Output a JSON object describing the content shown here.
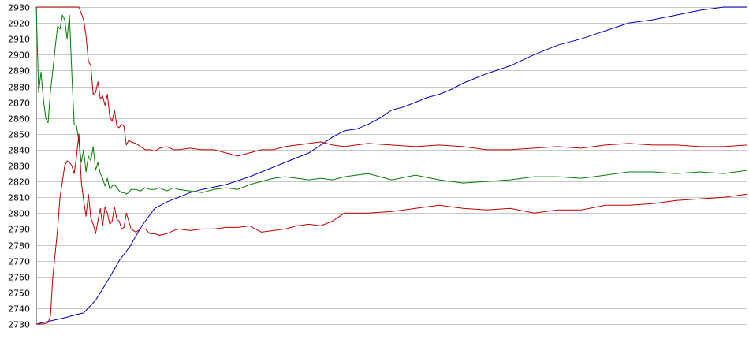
{
  "chart_data": {
    "type": "line",
    "title": "",
    "xlabel": "",
    "ylabel": "",
    "grid": true,
    "ylim": [
      2730,
      2930
    ],
    "xlim": [
      0,
      300
    ],
    "y_ticks": [
      2730,
      2740,
      2750,
      2760,
      2770,
      2780,
      2790,
      2800,
      2810,
      2820,
      2830,
      2840,
      2850,
      2860,
      2870,
      2880,
      2890,
      2900,
      2910,
      2920,
      2930
    ],
    "colors": {
      "blue": "#0000c0",
      "green": "#008000",
      "red": "#c00000",
      "grid": "#c8c8c8"
    },
    "series": [
      {
        "color": "#0000c0",
        "x": [
          0,
          6,
          12,
          17,
          20,
          25,
          30,
          35,
          40,
          41,
          45,
          50,
          55,
          60,
          65,
          70,
          80,
          90,
          100,
          110,
          115,
          120,
          125,
          130,
          135,
          140,
          145,
          150,
          155,
          160,
          165,
          170,
          175,
          180,
          190,
          200,
          210,
          220,
          230,
          240,
          250,
          260,
          270,
          280,
          290,
          300
        ],
        "y": [
          2730,
          2732,
          2734,
          2736,
          2737,
          2745,
          2757,
          2770,
          2780,
          2783,
          2793,
          2803,
          2807,
          2810,
          2813,
          2815,
          2818,
          2823,
          2829,
          2835,
          2838,
          2843,
          2848,
          2852,
          2853,
          2856,
          2860,
          2865,
          2867,
          2870,
          2873,
          2875,
          2878,
          2882,
          2888,
          2893,
          2900,
          2906,
          2910,
          2915,
          2920,
          2922,
          2925,
          2928,
          2932,
          2935
        ]
      },
      {
        "color": "#008000",
        "x": [
          0,
          1,
          2,
          3,
          4,
          5,
          6,
          7,
          8,
          9,
          10,
          11,
          12,
          13,
          14,
          15,
          16,
          17,
          18,
          19,
          20,
          21,
          22,
          23,
          24,
          25,
          26,
          27,
          28,
          29,
          30,
          31,
          32,
          33,
          34,
          35,
          36,
          37,
          38,
          39,
          40,
          42,
          44,
          46,
          48,
          50,
          52,
          55,
          58,
          60,
          65,
          70,
          75,
          80,
          85,
          90,
          95,
          100,
          105,
          110,
          115,
          120,
          125,
          130,
          140,
          150,
          160,
          170,
          180,
          190,
          200,
          210,
          220,
          230,
          240,
          250,
          260,
          270,
          280,
          290,
          300
        ],
        "y": [
          2930,
          2876,
          2889,
          2872,
          2860,
          2857,
          2877,
          2890,
          2905,
          2918,
          2916,
          2925,
          2922,
          2910,
          2925,
          2888,
          2856,
          2855,
          2845,
          2832,
          2840,
          2826,
          2836,
          2833,
          2842,
          2827,
          2832,
          2825,
          2822,
          2817,
          2822,
          2815,
          2817,
          2818,
          2816,
          2814,
          2813,
          2813,
          2812,
          2813,
          2815,
          2815,
          2814,
          2816,
          2815,
          2815,
          2816,
          2814,
          2816,
          2815,
          2814,
          2813,
          2815,
          2816,
          2815,
          2818,
          2820,
          2822,
          2823,
          2822,
          2821,
          2822,
          2821,
          2823,
          2825,
          2821,
          2824,
          2821,
          2819,
          2820,
          2821,
          2823,
          2823,
          2822,
          2824,
          2826,
          2826,
          2825,
          2826,
          2825,
          2827
        ]
      },
      {
        "color": "#c00000",
        "x": [
          0,
          5,
          10,
          15,
          18,
          19,
          20,
          21,
          22,
          23,
          24,
          25,
          26,
          27,
          28,
          29,
          30,
          31,
          32,
          33,
          34,
          35,
          36,
          37,
          38,
          39,
          40,
          42,
          44,
          46,
          48,
          50,
          52,
          55,
          58,
          60,
          65,
          70,
          75,
          80,
          85,
          90,
          95,
          100,
          105,
          110,
          115,
          120,
          125,
          130,
          140,
          150,
          160,
          170,
          180,
          190,
          200,
          210,
          220,
          230,
          240,
          250,
          260,
          270,
          280,
          290,
          300
        ],
        "y": [
          2930,
          2930,
          2930,
          2930,
          2930,
          2926,
          2922,
          2912,
          2896,
          2893,
          2875,
          2876,
          2883,
          2872,
          2874,
          2868,
          2875,
          2861,
          2858,
          2865,
          2855,
          2854,
          2856,
          2855,
          2843,
          2846,
          2845,
          2844,
          2842,
          2840,
          2840,
          2839,
          2841,
          2842,
          2840,
          2840,
          2841,
          2840,
          2840,
          2838,
          2836,
          2838,
          2840,
          2840,
          2842,
          2843,
          2844,
          2845,
          2843,
          2842,
          2844,
          2843,
          2842,
          2843,
          2842,
          2840,
          2840,
          2841,
          2842,
          2841,
          2843,
          2844,
          2843,
          2843,
          2842,
          2842,
          2843
        ]
      },
      {
        "color": "#c00000",
        "x": [
          0,
          3,
          5,
          6,
          7,
          8,
          9,
          10,
          11,
          12,
          13,
          14,
          15,
          16,
          17,
          18,
          19,
          20,
          21,
          22,
          23,
          24,
          25,
          26,
          27,
          28,
          29,
          30,
          31,
          32,
          33,
          34,
          35,
          36,
          37,
          38,
          39,
          40,
          42,
          44,
          46,
          48,
          50,
          52,
          55,
          58,
          60,
          65,
          70,
          75,
          80,
          85,
          90,
          95,
          100,
          105,
          110,
          115,
          120,
          125,
          130,
          140,
          150,
          160,
          170,
          180,
          190,
          200,
          210,
          220,
          230,
          240,
          250,
          260,
          270,
          280,
          290,
          300
        ],
        "y": [
          2730,
          2730,
          2731,
          2735,
          2760,
          2775,
          2790,
          2810,
          2820,
          2830,
          2833,
          2832,
          2830,
          2825,
          2836,
          2850,
          2820,
          2808,
          2798,
          2812,
          2797,
          2793,
          2787,
          2795,
          2803,
          2792,
          2804,
          2800,
          2793,
          2795,
          2804,
          2796,
          2795,
          2790,
          2791,
          2800,
          2795,
          2790,
          2788,
          2790,
          2790,
          2787,
          2787,
          2786,
          2787,
          2789,
          2790,
          2789,
          2790,
          2790,
          2791,
          2791,
          2792,
          2788,
          2789,
          2790,
          2792,
          2793,
          2792,
          2795,
          2800,
          2800,
          2801,
          2803,
          2805,
          2803,
          2802,
          2803,
          2800,
          2802,
          2802,
          2805,
          2805,
          2806,
          2808,
          2809,
          2810,
          2812
        ]
      }
    ]
  }
}
